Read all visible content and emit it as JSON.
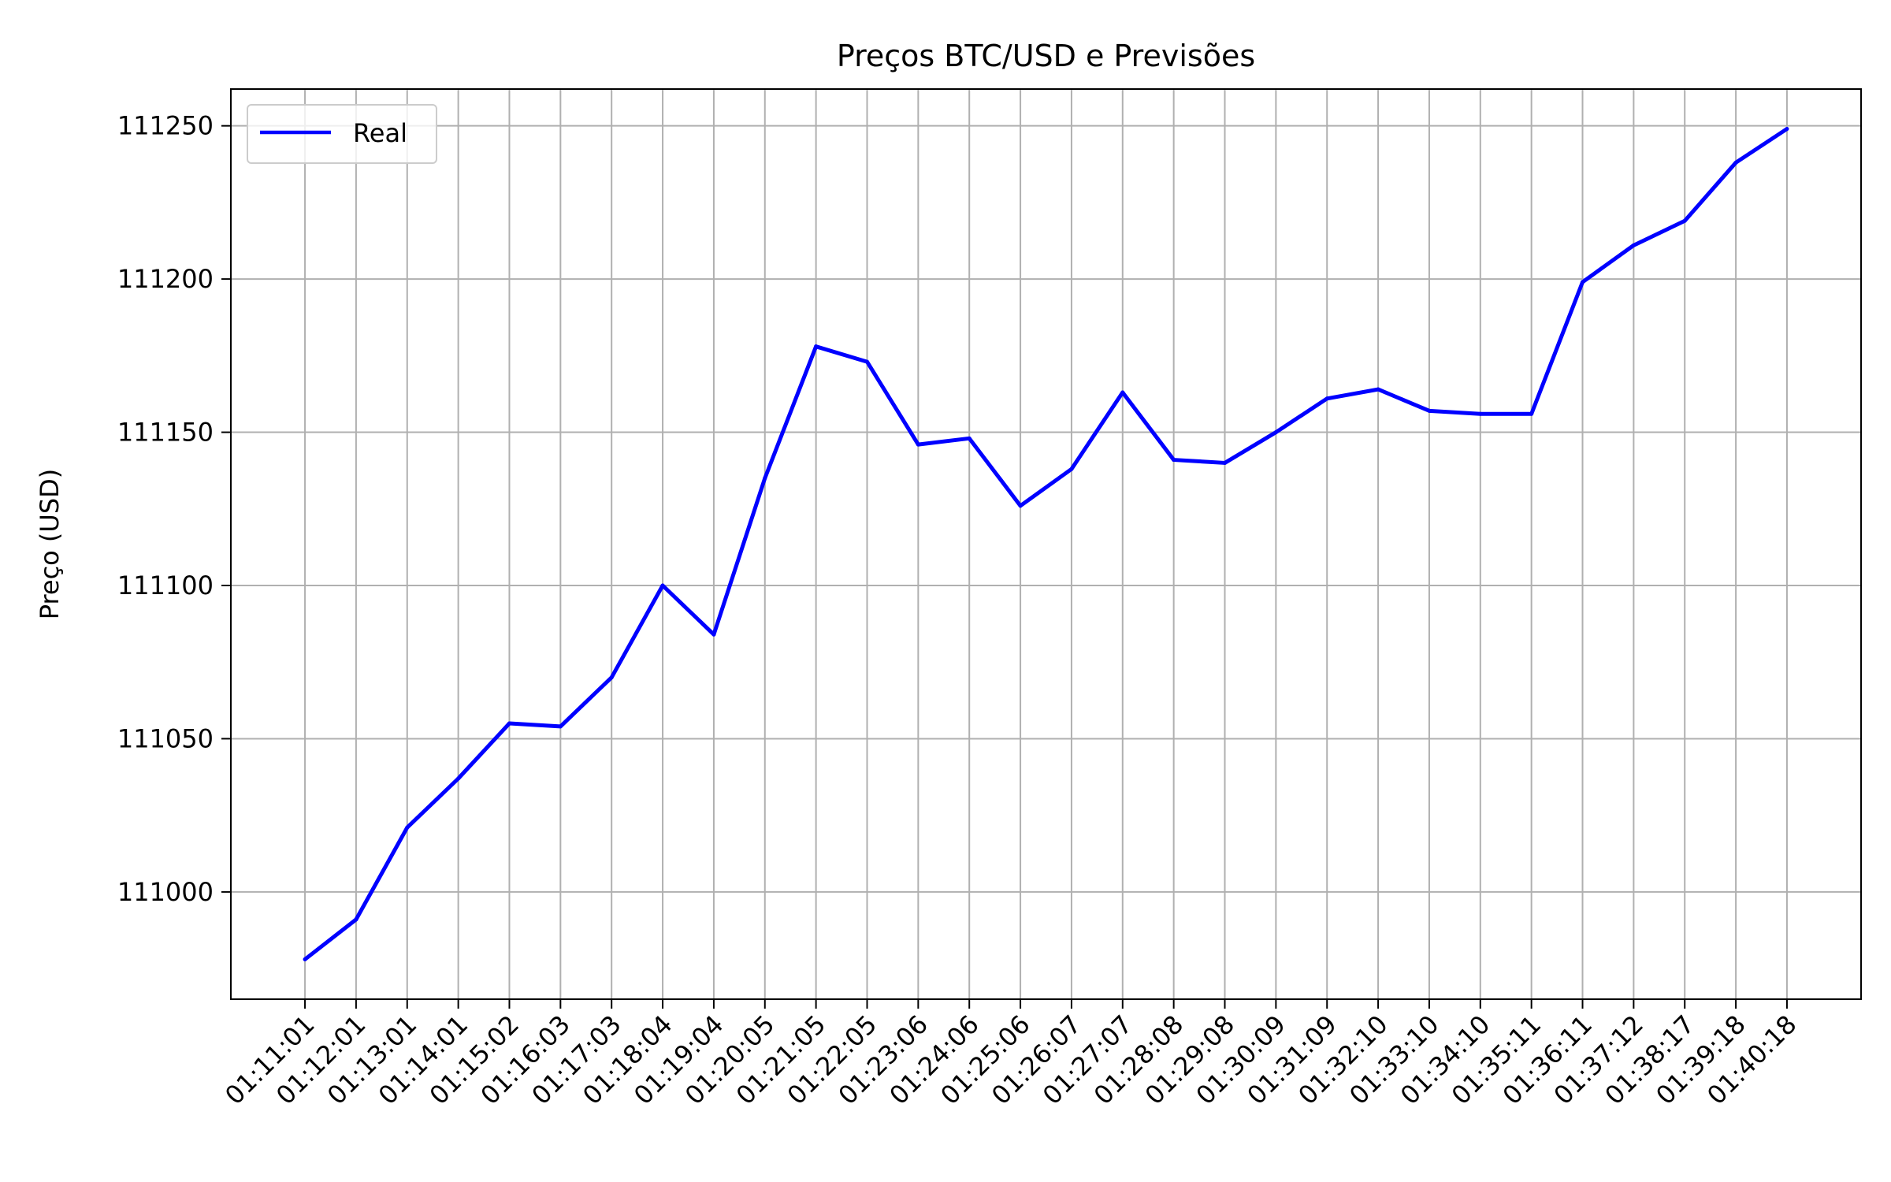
{
  "chart_data": {
    "type": "line",
    "title": "Preços BTC/USD e Previsões",
    "xlabel": "",
    "ylabel": "Preço (USD)",
    "categories": [
      "01:11:01",
      "01:12:01",
      "01:13:01",
      "01:14:01",
      "01:15:02",
      "01:16:03",
      "01:17:03",
      "01:18:04",
      "01:19:04",
      "01:20:05",
      "01:21:05",
      "01:22:05",
      "01:23:06",
      "01:24:06",
      "01:25:06",
      "01:26:07",
      "01:27:07",
      "01:28:08",
      "01:29:08",
      "01:30:09",
      "01:31:09",
      "01:32:10",
      "01:33:10",
      "01:34:10",
      "01:35:11",
      "01:36:11",
      "01:37:12",
      "01:38:17",
      "01:39:18",
      "01:40:18"
    ],
    "series": [
      {
        "name": "Real",
        "color": "#0000ff",
        "values": [
          110978,
          110991,
          111021,
          111037,
          111055,
          111054,
          111070,
          111100,
          111084,
          111135,
          111178,
          111173,
          111146,
          111148,
          111126,
          111138,
          111163,
          111141,
          111140,
          111150,
          111161,
          111164,
          111157,
          111156,
          111156,
          111199,
          111211,
          111219,
          111238,
          111249
        ]
      }
    ],
    "yticks": [
      111000,
      111050,
      111100,
      111150,
      111200,
      111250
    ],
    "ylim": [
      110965,
      111262
    ],
    "grid": true,
    "legend_position": "upper-left"
  }
}
